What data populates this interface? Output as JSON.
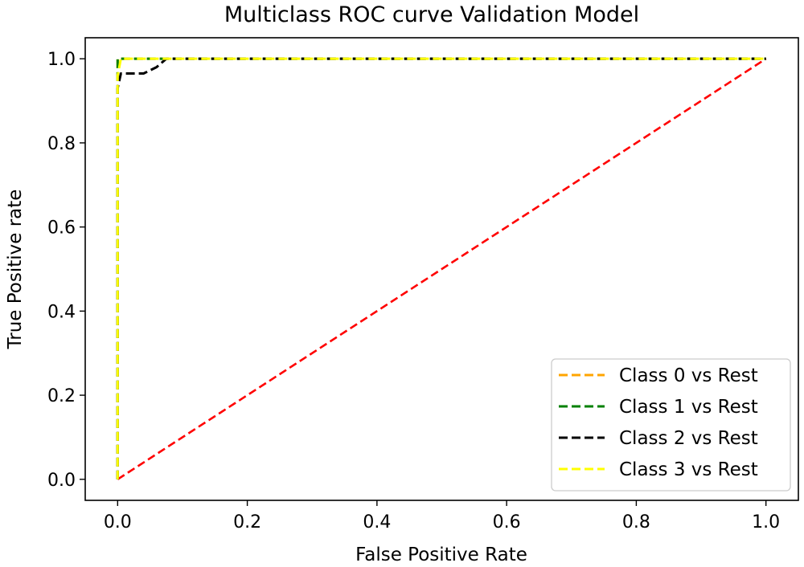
{
  "chart_data": {
    "type": "line",
    "title": "Multiclass ROC curve Validation Model",
    "xlabel": "False Positive Rate",
    "ylabel": "True Positive rate",
    "xlim": [
      -0.05,
      1.05
    ],
    "ylim": [
      -0.05,
      1.05
    ],
    "xticks": [
      0.0,
      0.2,
      0.4,
      0.6,
      0.8,
      1.0
    ],
    "yticks": [
      0.0,
      0.2,
      0.4,
      0.6,
      0.8,
      1.0
    ],
    "tick_labels": [
      "0.0",
      "0.2",
      "0.4",
      "0.6",
      "0.8",
      "1.0"
    ],
    "grid": false,
    "legend_position": "lower-right",
    "series": [
      {
        "name": "Class 0 vs Rest",
        "color": "#ffa500",
        "dashed": true,
        "x": [
          0.0,
          0.0,
          0.0,
          1.0
        ],
        "y": [
          0.0,
          0.98,
          1.0,
          1.0
        ]
      },
      {
        "name": "Class 1 vs Rest",
        "color": "#008000",
        "dashed": true,
        "x": [
          0.0,
          0.0,
          1.0
        ],
        "y": [
          0.0,
          1.0,
          1.0
        ]
      },
      {
        "name": "Class 2 vs Rest",
        "color": "#000000",
        "dashed": true,
        "x": [
          0.0,
          0.0,
          0.005,
          0.04,
          0.06,
          0.075,
          1.0
        ],
        "y": [
          0.0,
          0.93,
          0.965,
          0.965,
          0.98,
          1.0,
          1.0
        ]
      },
      {
        "name": "Class 3 vs Rest",
        "color": "#ffff00",
        "dashed": true,
        "x": [
          0.0,
          0.0,
          0.005,
          1.0
        ],
        "y": [
          0.0,
          0.96,
          1.0,
          1.0
        ]
      }
    ],
    "reference_line": {
      "x": [
        0.0,
        1.0
      ],
      "y": [
        0.0,
        1.0
      ],
      "color": "#ff0000",
      "dashed": true
    }
  }
}
